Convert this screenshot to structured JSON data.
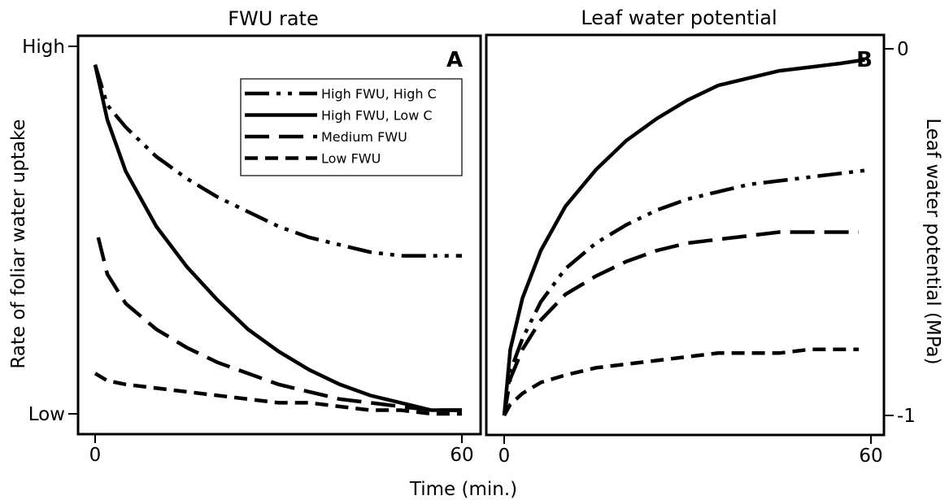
{
  "chart_data": [
    {
      "panel": "A",
      "type": "line",
      "title": "FWU rate",
      "ylabel": "Rate of foliar water uptake",
      "xlabel": "Time (min.)",
      "xlim": [
        0,
        60
      ],
      "ylim": [
        0,
        1
      ],
      "x_ticks": [
        {
          "value": 0,
          "label": "0"
        },
        {
          "value": 60,
          "label": "60"
        }
      ],
      "y_ticks": [
        {
          "value": 1,
          "label": "High"
        },
        {
          "value": 0,
          "label": "Low"
        }
      ],
      "legend_position": "top-right",
      "series": [
        {
          "name": "High FWU, High C",
          "style": "dash-dot-dot",
          "x": [
            0,
            2,
            5,
            10,
            15,
            20,
            25,
            30,
            35,
            40,
            45,
            50,
            55,
            60
          ],
          "y": [
            0.95,
            0.84,
            0.78,
            0.7,
            0.64,
            0.59,
            0.55,
            0.51,
            0.48,
            0.46,
            0.44,
            0.43,
            0.43,
            0.43
          ]
        },
        {
          "name": "High FWU, Low C",
          "style": "solid",
          "x": [
            0,
            2,
            5,
            10,
            15,
            20,
            25,
            30,
            35,
            40,
            45,
            50,
            55,
            60
          ],
          "y": [
            0.95,
            0.8,
            0.66,
            0.51,
            0.4,
            0.31,
            0.23,
            0.17,
            0.12,
            0.08,
            0.05,
            0.03,
            0.01,
            0.01
          ]
        },
        {
          "name": "Medium FWU",
          "style": "long-dash",
          "x": [
            0.5,
            2,
            5,
            10,
            15,
            20,
            25,
            30,
            35,
            40,
            45,
            50,
            55,
            60
          ],
          "y": [
            0.48,
            0.38,
            0.3,
            0.23,
            0.18,
            0.14,
            0.11,
            0.08,
            0.06,
            0.04,
            0.03,
            0.02,
            0.01,
            0.01
          ]
        },
        {
          "name": "Low FWU",
          "style": "short-dash",
          "x": [
            0,
            2,
            5,
            10,
            15,
            20,
            25,
            30,
            35,
            40,
            45,
            50,
            55,
            60
          ],
          "y": [
            0.11,
            0.09,
            0.08,
            0.07,
            0.06,
            0.05,
            0.04,
            0.03,
            0.03,
            0.02,
            0.01,
            0.01,
            0.0,
            0.0
          ]
        }
      ]
    },
    {
      "panel": "B",
      "type": "line",
      "title": "Leaf water potential",
      "ylabel": "Leaf water potential (MPa)",
      "xlabel": "Time (min.)",
      "xlim": [
        0,
        60
      ],
      "ylim": [
        -1,
        0
      ],
      "x_ticks": [
        {
          "value": 0,
          "label": "0"
        },
        {
          "value": 60,
          "label": "60"
        }
      ],
      "y_ticks": [
        {
          "value": 0,
          "label": "0"
        },
        {
          "value": -1,
          "label": "-1"
        }
      ],
      "series": [
        {
          "name": "High FWU, High C",
          "style": "dash-dot-dot",
          "x": [
            0,
            1,
            3,
            6,
            10,
            15,
            20,
            25,
            30,
            35,
            40,
            45,
            50,
            55,
            60
          ],
          "y": [
            -1.0,
            -0.88,
            -0.79,
            -0.69,
            -0.6,
            -0.53,
            -0.48,
            -0.44,
            -0.41,
            -0.39,
            -0.37,
            -0.36,
            -0.35,
            -0.34,
            -0.33
          ]
        },
        {
          "name": "High FWU, Low C",
          "style": "solid",
          "x": [
            0,
            1,
            3,
            6,
            10,
            15,
            20,
            25,
            30,
            35,
            40,
            45,
            50,
            55,
            59
          ],
          "y": [
            -1.0,
            -0.82,
            -0.68,
            -0.55,
            -0.43,
            -0.33,
            -0.25,
            -0.19,
            -0.14,
            -0.1,
            -0.08,
            -0.06,
            -0.05,
            -0.04,
            -0.03
          ]
        },
        {
          "name": "Medium FWU",
          "style": "long-dash",
          "x": [
            0,
            1,
            3,
            6,
            10,
            15,
            20,
            25,
            30,
            35,
            40,
            45,
            50,
            55,
            58
          ],
          "y": [
            -1.0,
            -0.9,
            -0.82,
            -0.74,
            -0.67,
            -0.62,
            -0.58,
            -0.55,
            -0.53,
            -0.52,
            -0.51,
            -0.5,
            -0.5,
            -0.5,
            -0.5
          ]
        },
        {
          "name": "Low FWU",
          "style": "short-dash",
          "x": [
            0,
            1,
            3,
            6,
            10,
            15,
            20,
            25,
            30,
            35,
            40,
            45,
            50,
            55,
            58
          ],
          "y": [
            -1.0,
            -0.97,
            -0.94,
            -0.91,
            -0.89,
            -0.87,
            -0.86,
            -0.85,
            -0.84,
            -0.83,
            -0.83,
            -0.83,
            -0.82,
            -0.82,
            -0.82
          ]
        }
      ]
    }
  ]
}
